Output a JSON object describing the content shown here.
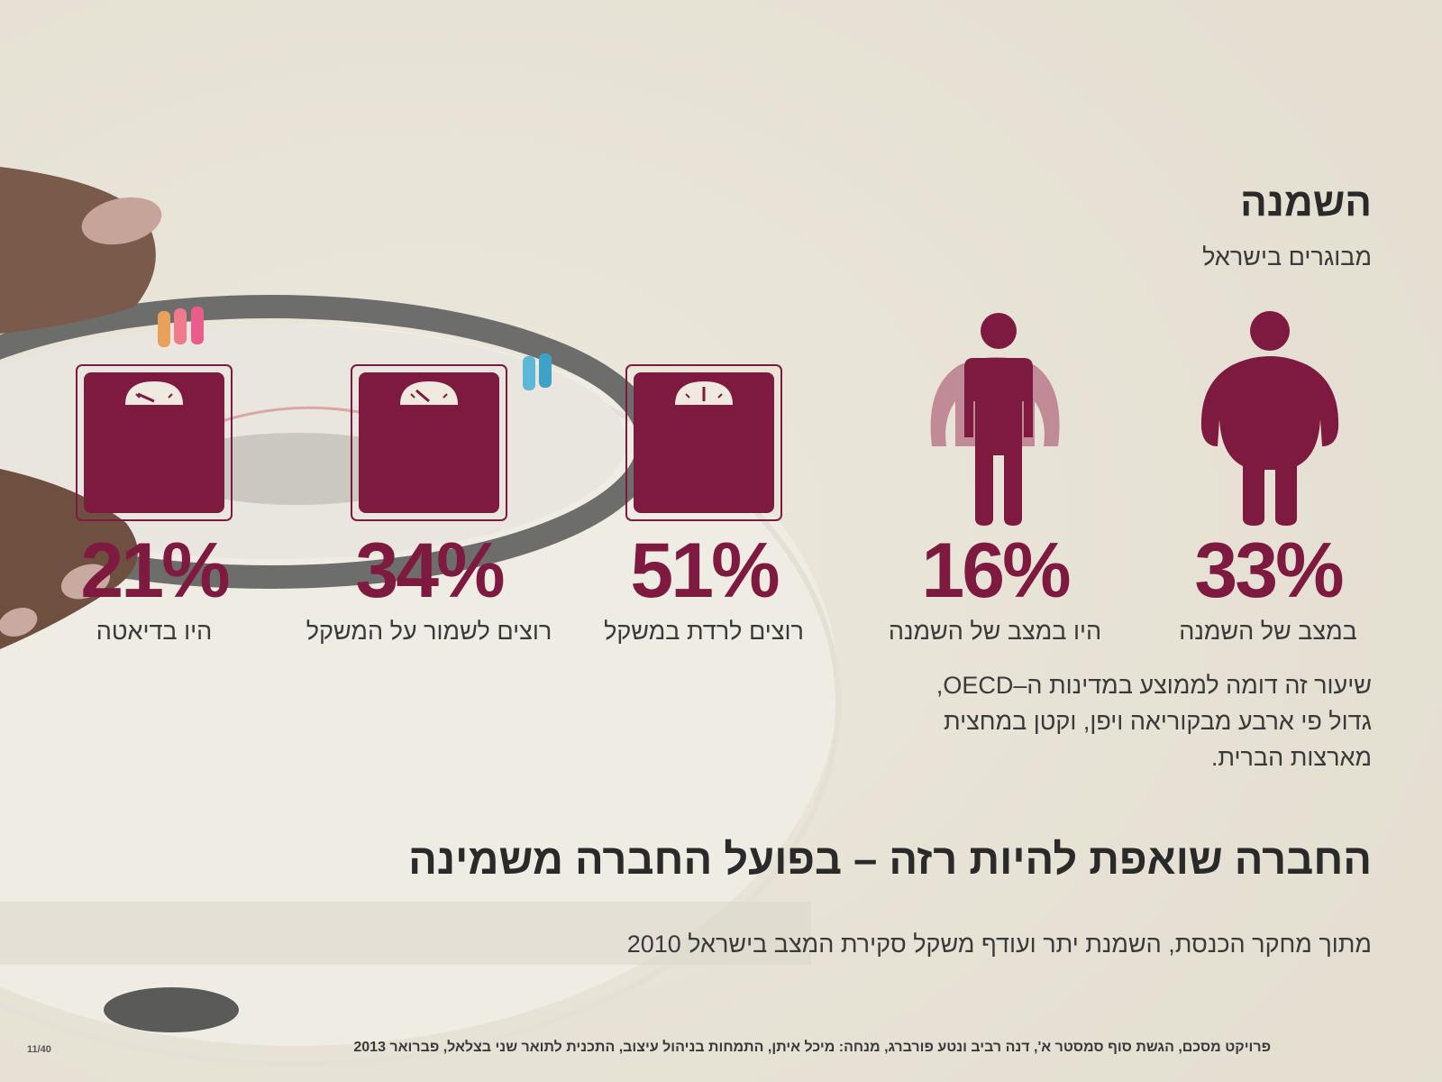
{
  "header": {
    "title": "השמנה",
    "subtitle": "מבוגרים בישראל"
  },
  "stats": [
    {
      "value": "33%",
      "caption": "במצב של השמנה",
      "icon": "obese-person-icon"
    },
    {
      "value": "16%",
      "caption": "היו במצב של השמנה",
      "icon": "person-shrinking-icon"
    },
    {
      "value": "51%",
      "caption": "רוצים לרדת במשקל",
      "icon": "scale-icon"
    },
    {
      "value": "34%",
      "caption": "רוצים לשמור על המשקל",
      "icon": "scale-icon"
    },
    {
      "value": "21%",
      "caption": "היו בדיאטה",
      "icon": "scale-icon"
    }
  ],
  "note": {
    "lines": [
      "שיעור זה דומה לממוצע במדינות ה–OECD,",
      "גדול פי ארבע מבקוריאה ויפן, וקטן במחצית",
      "מארצות הברית."
    ]
  },
  "headline": "החברה שואפת להיות רזה – בפועל החברה משמינה",
  "source": "מתוך מחקר הכנסת, השמנת יתר ועודף משקל סקירת המצב בישראל 2010",
  "footer": {
    "credits": "פרויקט מסכם, הגשת סוף סמסטר א', דנה רביב ונטע פורברג, מנחה: מיכל איתן, התמחות בניהול עיצוב, התכנית לתואר שני בצלאל, פברואר 2013",
    "page": "11/40"
  },
  "colors": {
    "accent": "#7e1a3f",
    "accent_light": "#c08a96",
    "background": "#e7e3d6",
    "text": "#2a2a2a"
  }
}
